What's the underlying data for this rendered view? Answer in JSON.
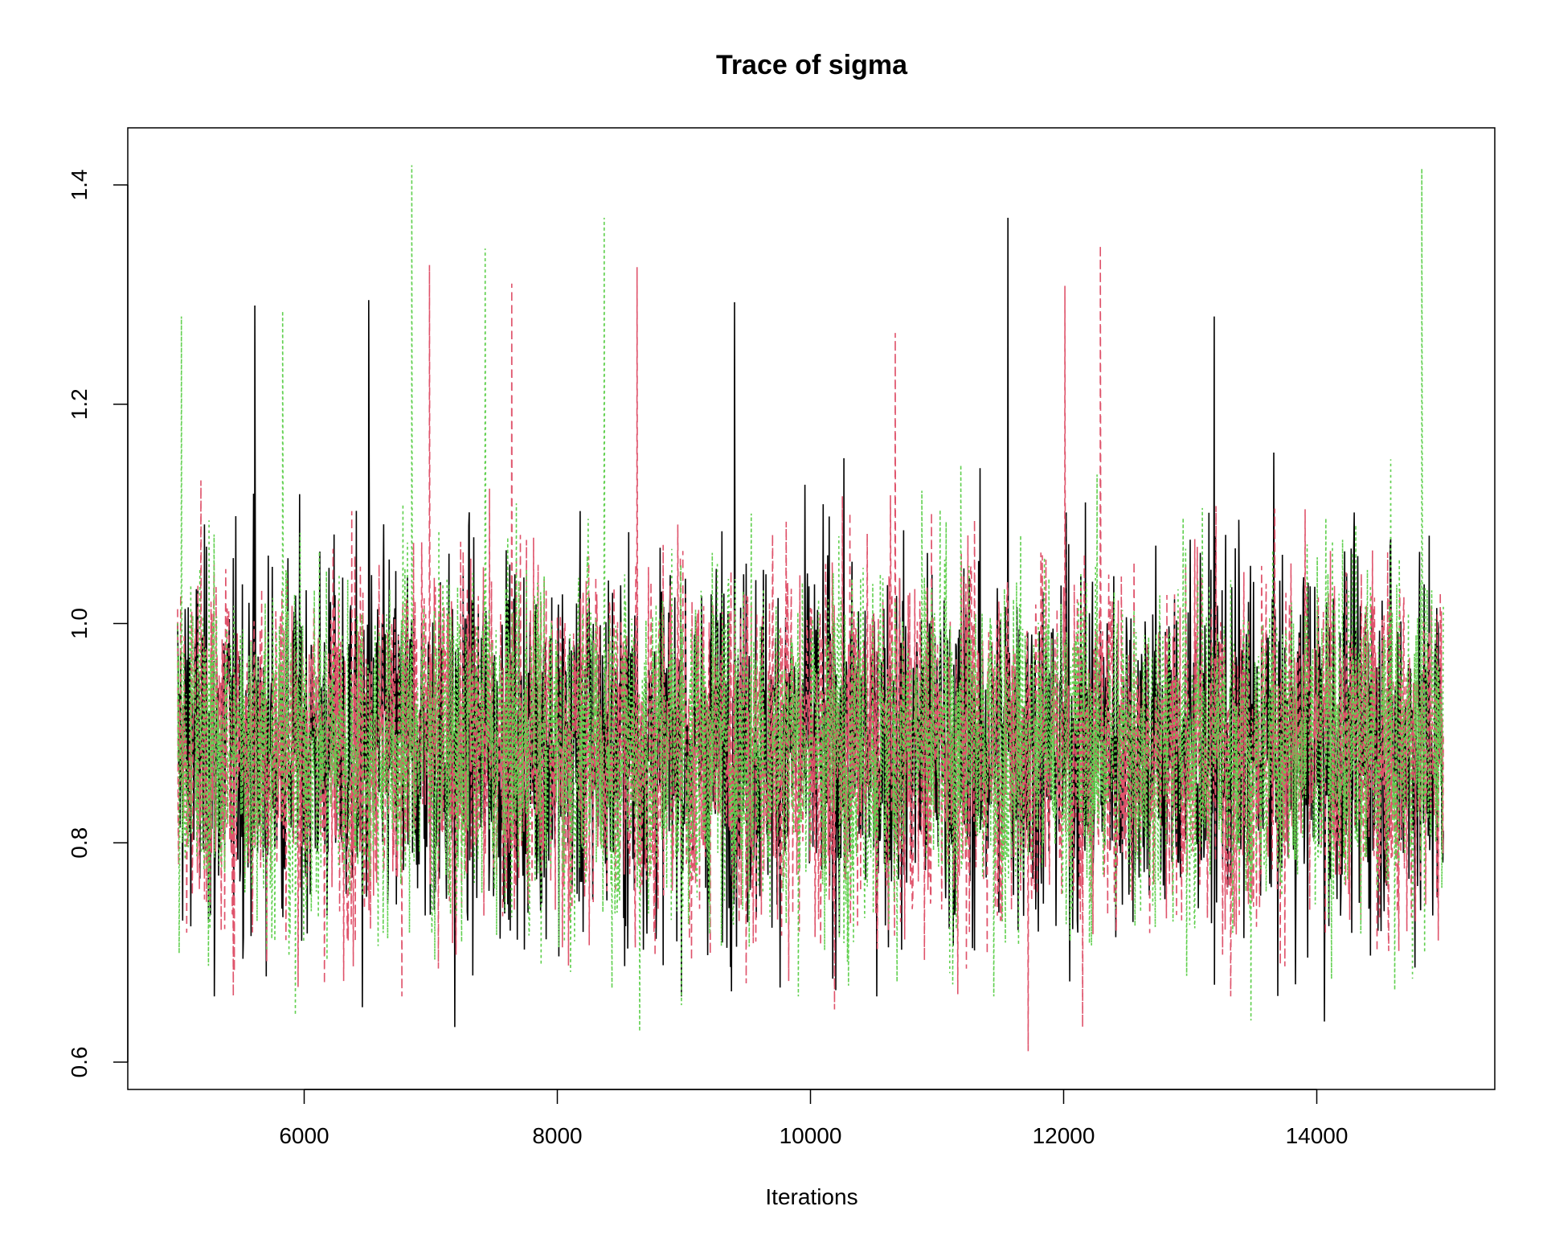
{
  "chart_data": {
    "type": "line",
    "title": "Trace of sigma",
    "xlabel": "Iterations",
    "ylabel": "",
    "xlim": [
      5000,
      15000
    ],
    "ylim": [
      0.6,
      1.4
    ],
    "x_ticks": [
      "6000",
      "8000",
      "10000",
      "12000",
      "14000"
    ],
    "x_tick_values": [
      6000,
      8000,
      10000,
      12000,
      14000
    ],
    "y_ticks": [
      "0.6",
      "0.8",
      "1.0",
      "1.2",
      "1.4"
    ],
    "y_tick_values": [
      0.6,
      0.8,
      1.0,
      1.2,
      1.4
    ],
    "grid": false,
    "legend": "none",
    "series": [
      {
        "color": "#000000",
        "linestyle": "solid",
        "center": 0.89,
        "typical_range": [
          0.72,
          1.15
        ],
        "extremes": [
          [
            11560,
            1.37
          ],
          [
            6510,
            1.295
          ],
          [
            9400,
            1.293
          ],
          [
            5610,
            1.29
          ],
          [
            13190,
            1.28
          ],
          [
            7190,
            0.632
          ],
          [
            14060,
            0.637
          ],
          [
            6460,
            0.65
          ],
          [
            5290,
            0.66
          ]
        ]
      },
      {
        "color": "#DF536B",
        "linestyle": "dashed",
        "center": 0.89,
        "typical_range": [
          0.71,
          1.15
        ],
        "extremes": [
          [
            12290,
            1.345
          ],
          [
            6990,
            1.327
          ],
          [
            8630,
            1.325
          ],
          [
            7640,
            1.31
          ],
          [
            12010,
            1.308
          ],
          [
            10670,
            1.265
          ],
          [
            11720,
            0.61
          ],
          [
            12150,
            0.632
          ],
          [
            10190,
            0.648
          ]
        ]
      },
      {
        "color": "#61D04F",
        "linestyle": "dotted",
        "center": 0.89,
        "typical_range": [
          0.72,
          1.14
        ],
        "extremes": [
          [
            6850,
            1.418
          ],
          [
            14830,
            1.415
          ],
          [
            8370,
            1.37
          ],
          [
            7430,
            1.342
          ],
          [
            5030,
            1.28
          ],
          [
            5830,
            1.285
          ],
          [
            8650,
            0.628
          ],
          [
            13480,
            0.638
          ],
          [
            5930,
            0.643
          ],
          [
            8980,
            0.652
          ]
        ]
      }
    ]
  }
}
